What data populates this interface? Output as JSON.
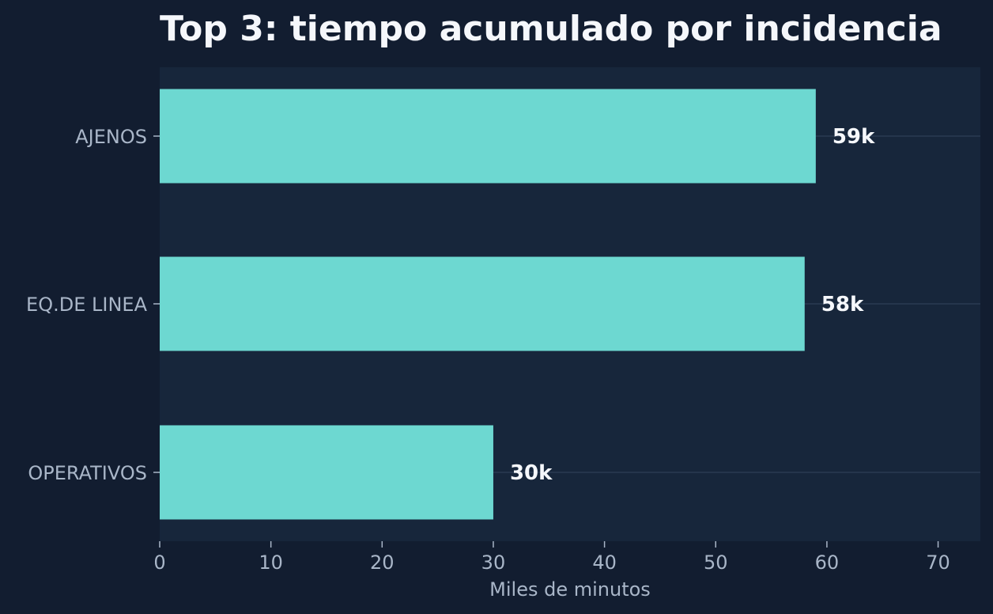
{
  "chart_data": {
    "type": "bar",
    "orientation": "horizontal",
    "title": "Top 3: tiempo acumulado por incidencia",
    "xlabel": "Miles de minutos",
    "ylabel": "",
    "categories": [
      "AJENOS",
      "EQ.DE LINEA",
      "OPERATIVOS"
    ],
    "values": [
      59,
      58,
      30
    ],
    "data_labels": [
      "59k",
      "58k",
      "30k"
    ],
    "xlim": [
      0,
      73.8
    ],
    "xticks": [
      0,
      10,
      20,
      30,
      40,
      50,
      60,
      70
    ],
    "xtick_labels": [
      "0",
      "10",
      "20",
      "30",
      "40",
      "50",
      "60",
      "70"
    ],
    "grid": "horizontal lines at category centers",
    "legend": "none"
  },
  "colors": {
    "page_background": "#121d30",
    "plot_background": "#17263b",
    "bar": "#6dd8d1",
    "grid": "#2a3a52",
    "title": "#f5f7fb",
    "tick_text": "#a9b6c8",
    "data_label": "#f5f7fb"
  }
}
